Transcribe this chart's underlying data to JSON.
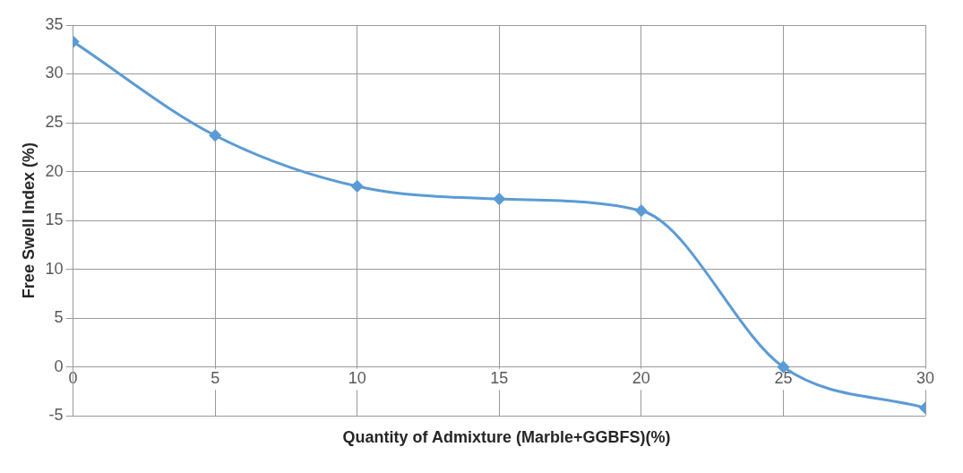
{
  "chart_data": {
    "type": "line",
    "xlabel": "Quantity of Admixture (Marble+GGBFS)(%)",
    "ylabel": "Free Swell Index (%)",
    "x": [
      0,
      5,
      10,
      15,
      20,
      25,
      30
    ],
    "series": [
      {
        "color": "#5b9bd5",
        "values": [
          33.3,
          23.7,
          18.5,
          17.2,
          16,
          0,
          -4.2
        ]
      }
    ],
    "xlim": [
      0,
      30
    ],
    "xticks": [
      0,
      5,
      10,
      15,
      20,
      25,
      30
    ],
    "ylim": [
      -5,
      35
    ],
    "yticks": [
      -5,
      0,
      5,
      10,
      15,
      20,
      25,
      30,
      35
    ],
    "grid": true,
    "legend": false,
    "marker": "diamond",
    "line_style": "solid"
  }
}
